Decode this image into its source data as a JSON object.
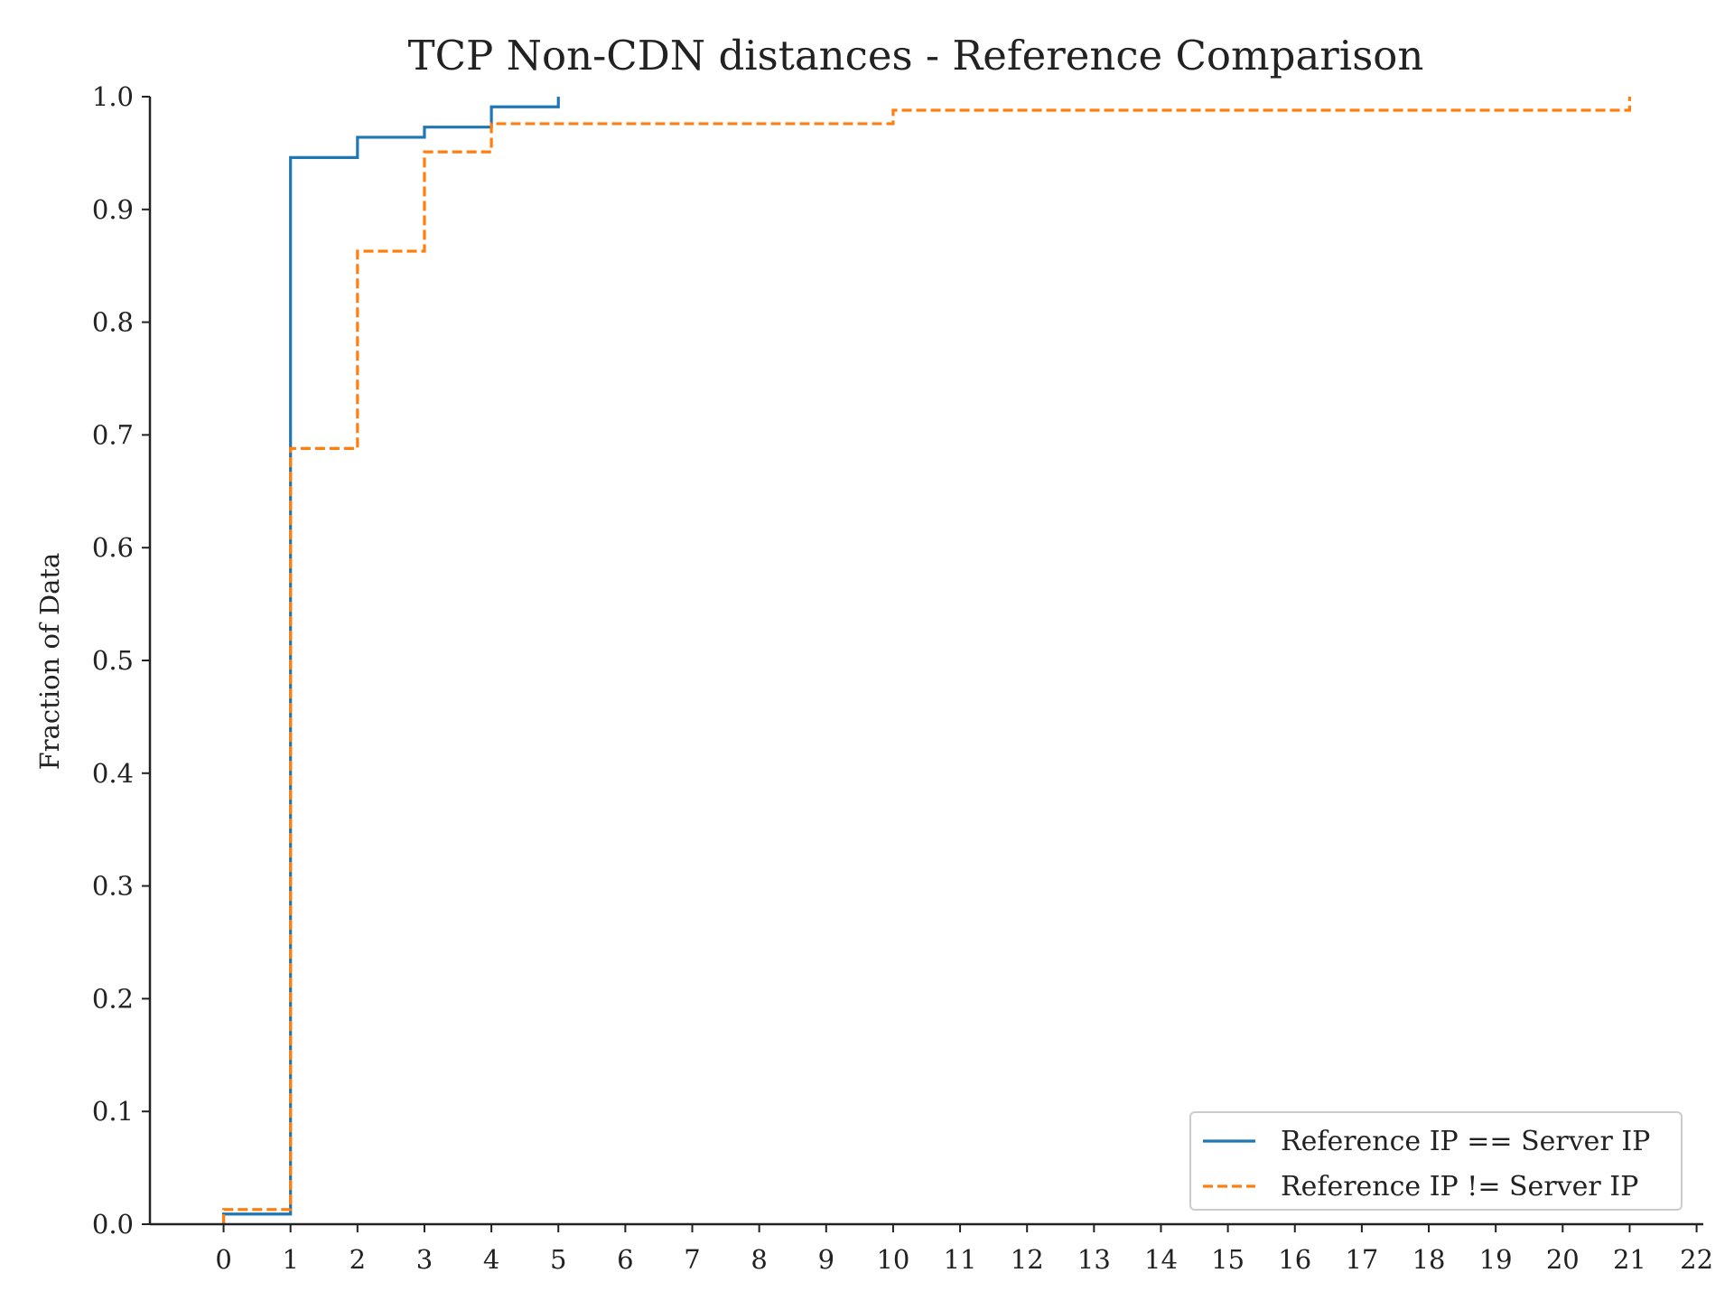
{
  "chart_data": {
    "type": "line",
    "title": "TCP Non-CDN distances - Reference Comparison",
    "xlabel": "",
    "ylabel": "Fraction of Data",
    "xlim": [
      -1.1,
      22.1
    ],
    "ylim": [
      0.0,
      1.0
    ],
    "x_ticks": [
      0,
      1,
      2,
      3,
      4,
      5,
      6,
      7,
      8,
      9,
      10,
      11,
      12,
      13,
      14,
      15,
      16,
      17,
      18,
      19,
      20,
      21,
      22
    ],
    "y_ticks": [
      0.0,
      0.1,
      0.2,
      0.3,
      0.4,
      0.5,
      0.6,
      0.7,
      0.8,
      0.9,
      1.0
    ],
    "x_tick_labels": [
      "0",
      "1",
      "2",
      "3",
      "4",
      "5",
      "6",
      "7",
      "8",
      "9",
      "10",
      "11",
      "12",
      "13",
      "14",
      "15",
      "16",
      "17",
      "18",
      "19",
      "20",
      "21",
      "22"
    ],
    "y_tick_labels": [
      "0.0",
      "0.1",
      "0.2",
      "0.3",
      "0.4",
      "0.5",
      "0.6",
      "0.7",
      "0.8",
      "0.9",
      "1.0"
    ],
    "grid": false,
    "legend_position": "bottom-right",
    "step": "post",
    "series": [
      {
        "name": "Reference IP == Server IP",
        "color": "#1f77b4",
        "dash": "solid",
        "x": [
          0,
          1,
          2,
          3,
          4,
          5
        ],
        "y": [
          0.009,
          0.946,
          0.964,
          0.973,
          0.991,
          1.0
        ]
      },
      {
        "name": "Reference IP != Server IP",
        "color": "#ff7f0e",
        "dash": "dashed",
        "x": [
          0,
          1,
          2,
          3,
          4,
          10,
          21
        ],
        "y": [
          0.013,
          0.688,
          0.863,
          0.951,
          0.976,
          0.988,
          1.0
        ]
      }
    ]
  }
}
